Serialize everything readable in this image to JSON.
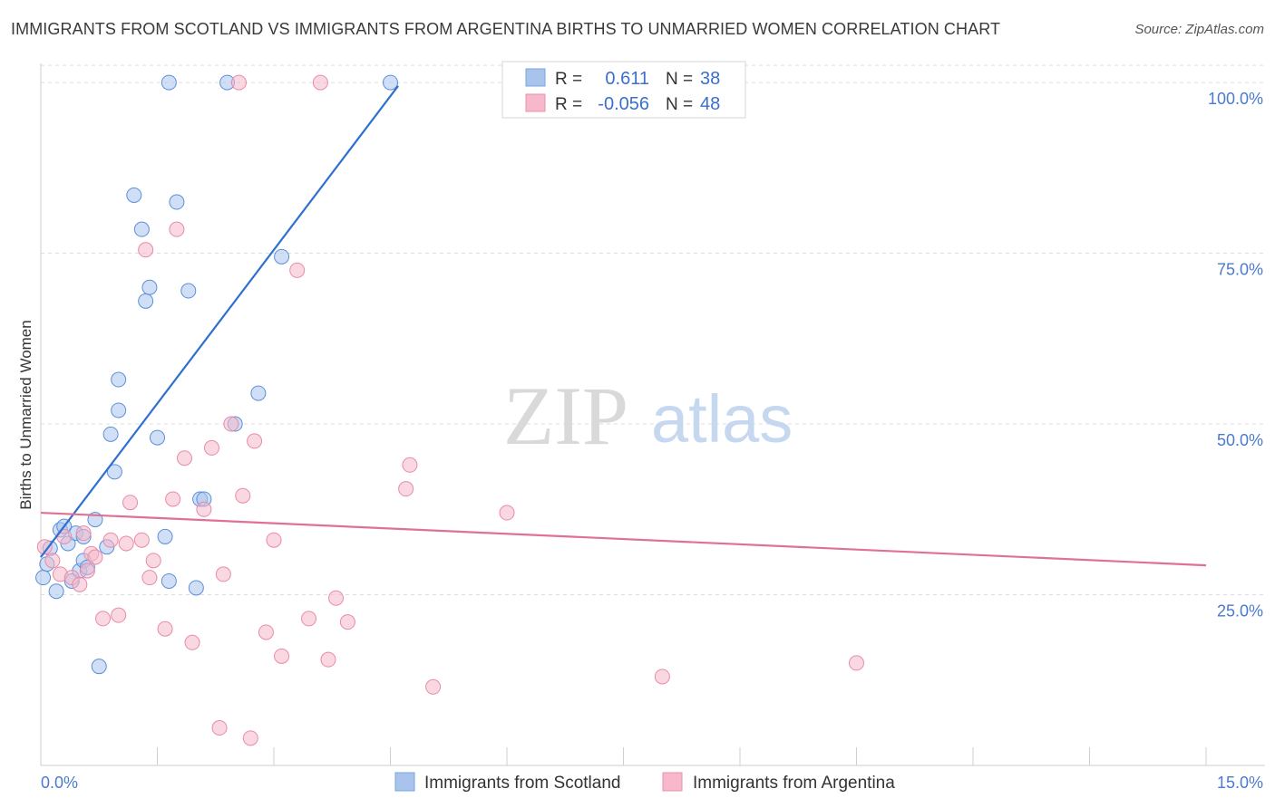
{
  "title": "IMMIGRANTS FROM SCOTLAND VS IMMIGRANTS FROM ARGENTINA BIRTHS TO UNMARRIED WOMEN CORRELATION CHART",
  "source": "Source: ZipAtlas.com",
  "watermark": {
    "part1": "ZIP",
    "part2": "atlas"
  },
  "legend": {
    "rows": [
      {
        "r_label": "R =",
        "r_value": "0.611",
        "n_label": "N =",
        "n_value": "38",
        "color": "#a9c4ec"
      },
      {
        "r_label": "R =",
        "r_value": "-0.056",
        "n_label": "N =",
        "n_value": "48",
        "color": "#f6b8ca"
      }
    ]
  },
  "bottom_legend": [
    {
      "label": "Immigrants from Scotland",
      "color": "#a9c4ec"
    },
    {
      "label": "Immigrants from Argentina",
      "color": "#f6b8ca"
    }
  ],
  "chart_data": {
    "type": "scatter",
    "xlabel": "",
    "ylabel": "Births to Unmarried Women",
    "xlim": [
      0,
      15
    ],
    "ylim": [
      0,
      102
    ],
    "x_tick_labels": [
      "0.0%",
      "15.0%"
    ],
    "y_ticks": [
      {
        "value": 100,
        "label": "100.0%"
      },
      {
        "value": 75,
        "label": "75.0%"
      },
      {
        "value": 50,
        "label": "50.0%"
      },
      {
        "value": 25,
        "label": "25.0%"
      }
    ],
    "grid": "horizontal dashed",
    "legend_position": "top-center",
    "series": [
      {
        "name": "Immigrants from Scotland",
        "color": "#5b8fd9",
        "fill": "#a9c4ec",
        "trend": {
          "x": [
            0.0,
            4.6
          ],
          "y": [
            30.5,
            99.5
          ],
          "color": "#2f6fd0"
        },
        "points": [
          [
            0.03,
            27.5
          ],
          [
            0.08,
            29.5
          ],
          [
            0.12,
            31.8
          ],
          [
            0.2,
            25.5
          ],
          [
            0.25,
            34.5
          ],
          [
            0.35,
            32.5
          ],
          [
            0.4,
            27.0
          ],
          [
            0.45,
            34.0
          ],
          [
            0.5,
            28.5
          ],
          [
            0.55,
            30.0
          ],
          [
            0.6,
            29.0
          ],
          [
            0.7,
            36.0
          ],
          [
            0.75,
            14.5
          ],
          [
            0.85,
            32.0
          ],
          [
            0.9,
            48.5
          ],
          [
            0.95,
            43.0
          ],
          [
            1.0,
            52.0
          ],
          [
            1.0,
            56.5
          ],
          [
            1.2,
            83.5
          ],
          [
            1.3,
            78.5
          ],
          [
            1.35,
            68.0
          ],
          [
            1.4,
            70.0
          ],
          [
            1.5,
            48.0
          ],
          [
            1.6,
            33.5
          ],
          [
            1.65,
            27.0
          ],
          [
            1.75,
            82.5
          ],
          [
            1.9,
            69.5
          ],
          [
            2.0,
            26.0
          ],
          [
            2.05,
            39.0
          ],
          [
            2.1,
            39.0
          ],
          [
            1.65,
            100.0
          ],
          [
            2.4,
            100.0
          ],
          [
            2.5,
            50.0
          ],
          [
            2.8,
            54.5
          ],
          [
            3.1,
            74.5
          ],
          [
            4.5,
            100.0
          ],
          [
            0.3,
            35.0
          ],
          [
            0.55,
            33.5
          ]
        ]
      },
      {
        "name": "Immigrants from Argentina",
        "color": "#e98aa8",
        "fill": "#f6b8ca",
        "trend": {
          "x": [
            0.0,
            15.0
          ],
          "y": [
            37.0,
            29.3
          ],
          "color": "#e07096"
        },
        "points": [
          [
            0.05,
            32.0
          ],
          [
            0.15,
            30.0
          ],
          [
            0.25,
            28.0
          ],
          [
            0.3,
            33.5
          ],
          [
            0.4,
            27.5
          ],
          [
            0.5,
            26.5
          ],
          [
            0.55,
            34.0
          ],
          [
            0.6,
            28.5
          ],
          [
            0.65,
            31.0
          ],
          [
            0.7,
            30.5
          ],
          [
            0.8,
            21.5
          ],
          [
            0.9,
            33.0
          ],
          [
            1.0,
            22.0
          ],
          [
            1.1,
            32.5
          ],
          [
            1.15,
            38.5
          ],
          [
            1.3,
            33.0
          ],
          [
            1.35,
            75.5
          ],
          [
            1.4,
            27.5
          ],
          [
            1.45,
            30.0
          ],
          [
            1.6,
            20.0
          ],
          [
            1.7,
            39.0
          ],
          [
            1.75,
            78.5
          ],
          [
            1.85,
            45.0
          ],
          [
            1.95,
            18.0
          ],
          [
            2.1,
            37.5
          ],
          [
            2.2,
            46.5
          ],
          [
            2.3,
            5.5
          ],
          [
            2.35,
            28.0
          ],
          [
            2.45,
            50.0
          ],
          [
            2.55,
            100.0
          ],
          [
            2.6,
            39.5
          ],
          [
            2.7,
            4.0
          ],
          [
            2.75,
            47.5
          ],
          [
            2.9,
            19.5
          ],
          [
            3.0,
            33.0
          ],
          [
            3.1,
            16.0
          ],
          [
            3.3,
            72.5
          ],
          [
            3.45,
            21.5
          ],
          [
            3.6,
            100.0
          ],
          [
            3.7,
            15.5
          ],
          [
            3.8,
            24.5
          ],
          [
            3.95,
            21.0
          ],
          [
            4.7,
            40.5
          ],
          [
            4.75,
            44.0
          ],
          [
            5.05,
            11.5
          ],
          [
            6.0,
            37.0
          ],
          [
            8.0,
            13.0
          ],
          [
            10.5,
            15.0
          ]
        ]
      }
    ]
  }
}
